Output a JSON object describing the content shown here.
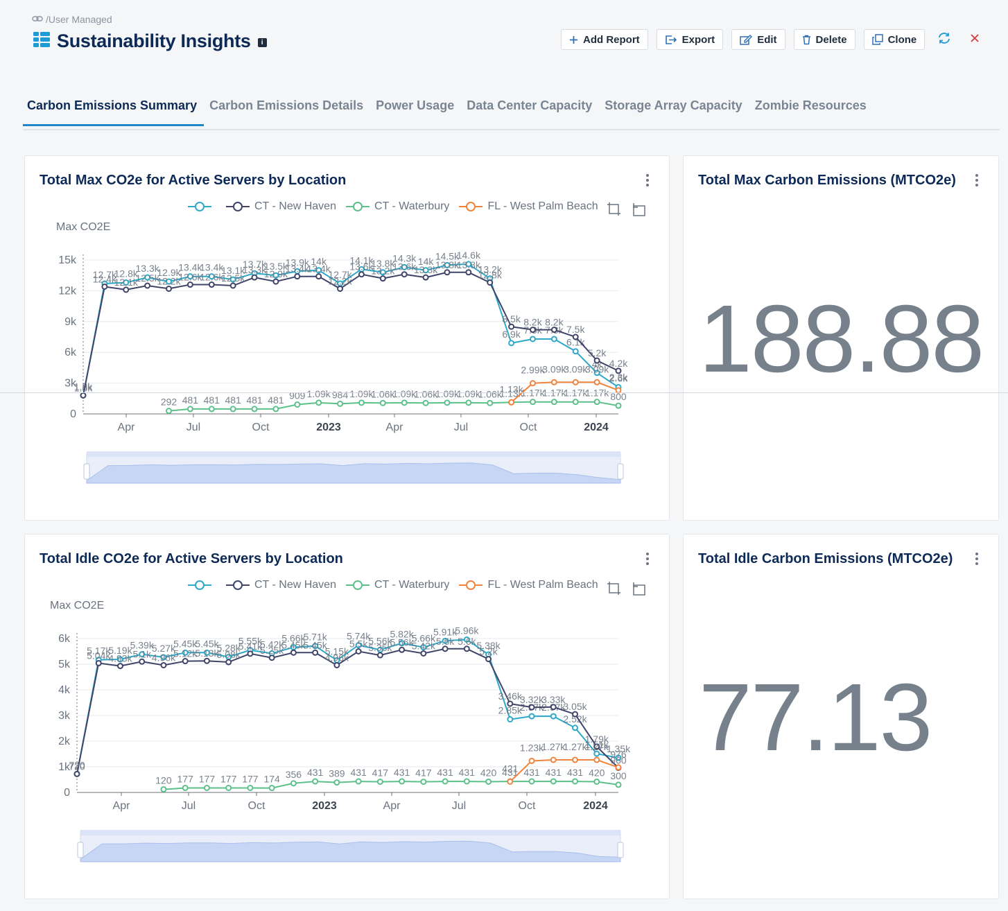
{
  "breadcrumb": {
    "text": "/User Managed"
  },
  "page": {
    "title": "Sustainability Insights"
  },
  "toolbar": {
    "add_report": "Add Report",
    "export": "Export",
    "edit": "Edit",
    "delete": "Delete",
    "clone": "Clone"
  },
  "tabs": [
    {
      "label": "Carbon Emissions Summary",
      "active": true
    },
    {
      "label": "Carbon Emissions Details"
    },
    {
      "label": "Power Usage"
    },
    {
      "label": "Data Center Capacity"
    },
    {
      "label": "Storage Array Capacity"
    },
    {
      "label": "Zombie Resources"
    }
  ],
  "colors": {
    "unnamed": "#2ea8c8",
    "new_haven": "#3f4468",
    "waterbury": "#5bc08a",
    "west_palm": "#f0843c",
    "title": "#0d2a57",
    "accent": "#1e88c8"
  },
  "kpis": {
    "max": {
      "title": "Total Max Carbon Emissions (MTCO2e)",
      "value": "188.88"
    },
    "idle": {
      "title": "Total Idle Carbon Emissions (MTCO2e)",
      "value": "77.13"
    }
  },
  "charts": {
    "max": {
      "title": "Total Max CO2e for Active Servers by Location",
      "ylabel": "Max CO2E"
    },
    "idle": {
      "title": "Total Idle CO2e for Active Servers by Location",
      "ylabel": "Max CO2E"
    }
  },
  "legend": {
    "s0": "",
    "s1": "CT - New Haven",
    "s2": "CT - Waterbury",
    "s3": "FL - West Palm Beach"
  },
  "chart_data": [
    {
      "type": "line",
      "title": "Total Max CO2e for Active Servers by Location",
      "ylabel": "Max CO2E",
      "ylim": [
        0,
        15000
      ],
      "yticks": [
        "0",
        "3k",
        "6k",
        "9k",
        "12k",
        "15k"
      ],
      "xticks": [
        "Apr",
        "Jul",
        "Oct",
        "2023",
        "Apr",
        "Jul",
        "Oct",
        "2024"
      ],
      "legend": "top",
      "x": [
        "2022-02",
        "2022-03",
        "2022-04",
        "2022-05",
        "2022-06",
        "2022-07",
        "2022-08",
        "2022-09",
        "2022-10",
        "2022-11",
        "2022-12",
        "2023-01",
        "2023-02",
        "2023-03",
        "2023-04",
        "2023-05",
        "2023-06",
        "2023-07",
        "2023-08",
        "2023-09",
        "2023-10",
        "2023-11",
        "2023-12",
        "2024-01",
        "2024-02",
        "2024-03"
      ],
      "series": [
        {
          "name": "",
          "values": [
            1800,
            12700,
            12800,
            13300,
            12900,
            13400,
            13400,
            13100,
            13700,
            13500,
            13900,
            14000,
            12700,
            14100,
            13800,
            14300,
            14000,
            14500,
            14600,
            13200,
            6900,
            7300,
            7300,
            6100,
            4000,
            2600
          ]
        },
        {
          "name": "CT - New Haven",
          "values": [
            1800,
            12400,
            12100,
            12500,
            12200,
            12600,
            12600,
            12500,
            13300,
            12900,
            13400,
            13400,
            12200,
            13600,
            13200,
            13600,
            13300,
            13800,
            13800,
            12800,
            8500,
            8200,
            8200,
            7500,
            5200,
            4200
          ]
        },
        {
          "name": "CT - Waterbury",
          "values": [
            null,
            null,
            null,
            null,
            292,
            481,
            481,
            481,
            481,
            481,
            909,
            1090,
            984,
            1090,
            1060,
            1090,
            1060,
            1090,
            1090,
            1060,
            1130,
            1170,
            1170,
            1170,
            1170,
            800
          ]
        },
        {
          "name": "FL - West Palm Beach",
          "values": [
            null,
            null,
            null,
            null,
            null,
            null,
            null,
            null,
            null,
            null,
            null,
            null,
            null,
            null,
            null,
            null,
            null,
            null,
            null,
            null,
            1130,
            2990,
            3090,
            3090,
            3090,
            2300
          ]
        }
      ]
    },
    {
      "type": "line",
      "title": "Total Idle CO2e for Active Servers by Location",
      "ylabel": "Max CO2E",
      "ylim": [
        0,
        6000
      ],
      "yticks": [
        "0",
        "1k",
        "2k",
        "3k",
        "4k",
        "5k",
        "6k"
      ],
      "xticks": [
        "Apr",
        "Jul",
        "Oct",
        "2023",
        "Apr",
        "Jul",
        "Oct",
        "2024"
      ],
      "legend": "top",
      "x": [
        "2022-02",
        "2022-03",
        "2022-04",
        "2022-05",
        "2022-06",
        "2022-07",
        "2022-08",
        "2022-09",
        "2022-10",
        "2022-11",
        "2022-12",
        "2023-01",
        "2023-02",
        "2023-03",
        "2023-04",
        "2023-05",
        "2023-06",
        "2023-07",
        "2023-08",
        "2023-09",
        "2023-10",
        "2023-11",
        "2023-12",
        "2024-01",
        "2024-02",
        "2024-03"
      ],
      "series": [
        {
          "name": "",
          "values": [
            720,
            5170,
            5190,
            5390,
            5270,
            5450,
            5450,
            5280,
            5550,
            5420,
            5660,
            5710,
            5150,
            5740,
            5560,
            5820,
            5660,
            5910,
            5960,
            5380,
            2850,
            2970,
            2970,
            2520,
            1510,
            1350
          ]
        },
        {
          "name": "CT - New Haven",
          "values": [
            720,
            5040,
            4930,
            5100,
            4960,
            5120,
            5130,
            5080,
            5410,
            5250,
            5450,
            5450,
            4960,
            5500,
            5350,
            5560,
            5420,
            5600,
            5600,
            5200,
            3460,
            3320,
            3330,
            3050,
            1790,
            960
          ]
        },
        {
          "name": "CT - Waterbury",
          "values": [
            null,
            null,
            null,
            null,
            120,
            177,
            177,
            177,
            177,
            174,
            356,
            431,
            389,
            431,
            417,
            431,
            417,
            431,
            431,
            420,
            431,
            431,
            431,
            431,
            420,
            300
          ]
        },
        {
          "name": "FL - West Palm Beach",
          "values": [
            null,
            null,
            null,
            null,
            null,
            null,
            null,
            null,
            null,
            null,
            null,
            null,
            null,
            null,
            null,
            null,
            null,
            null,
            null,
            null,
            421,
            1230,
            1270,
            1270,
            1270,
            976
          ]
        }
      ]
    }
  ]
}
